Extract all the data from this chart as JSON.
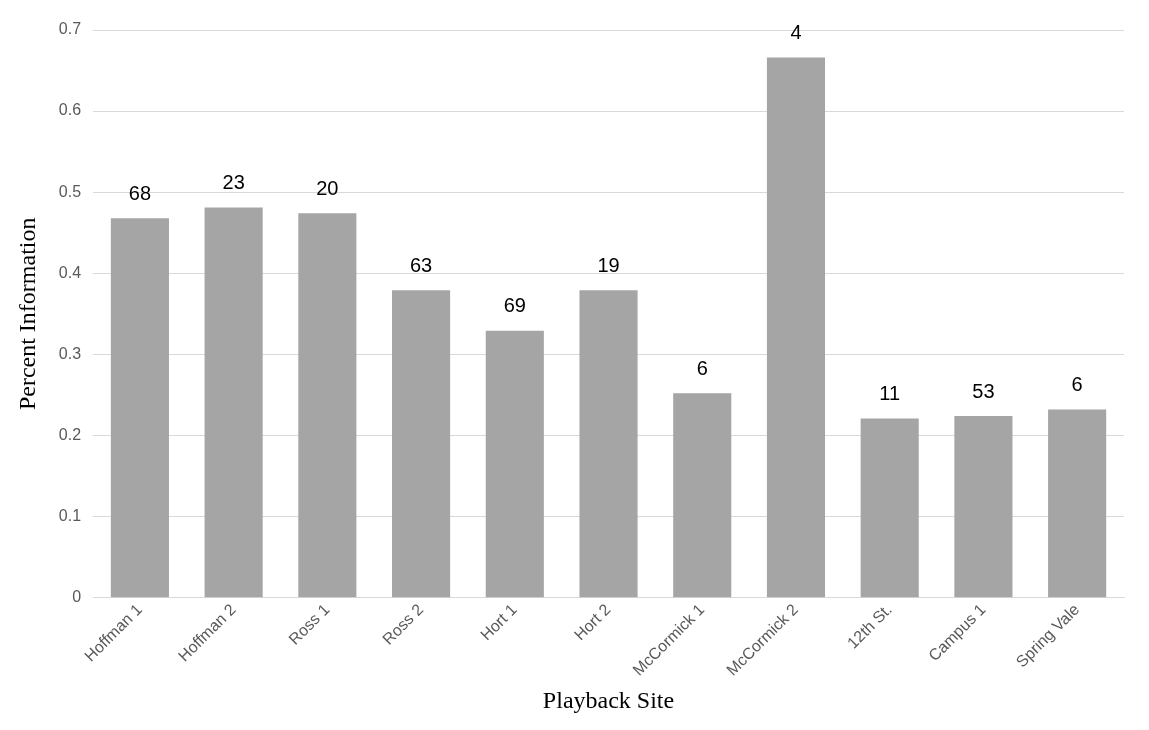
{
  "chart_data": {
    "type": "bar",
    "xlabel": "Playback Site",
    "ylabel": "Percent Information",
    "categories": [
      "Hoffman 1",
      "Hoffman 2",
      "Ross 1",
      "Ross 2",
      "Hort 1",
      "Hort 2",
      "McCormick 1",
      "McCormick 2",
      "12th St.",
      "Campus 1",
      "Spring Vale"
    ],
    "values": [
      0.468,
      0.481,
      0.474,
      0.379,
      0.329,
      0.379,
      0.252,
      0.666,
      0.221,
      0.224,
      0.232
    ],
    "annotations": [
      {
        "text": "68",
        "x": "Hoffman 1",
        "y": 0.468
      },
      {
        "text": "23",
        "x": "Hoffman 2",
        "y": 0.481
      },
      {
        "text": "20",
        "x": "Ross 1",
        "y": 0.474
      },
      {
        "text": "63",
        "x": "Ross 2",
        "y": 0.379
      },
      {
        "text": "69",
        "x": "Hort 1",
        "y": 0.329
      },
      {
        "text": "19",
        "x": "Hort 2",
        "y": 0.379
      },
      {
        "text": "6",
        "x": "McCormick 1",
        "y": 0.252
      },
      {
        "text": "4",
        "x": "McCormick 2",
        "y": 0.666
      },
      {
        "text": "11",
        "x": "12th St.",
        "y": 0.221
      },
      {
        "text": "53",
        "x": "Campus 1",
        "y": 0.224
      },
      {
        "text": "6",
        "x": "Spring Vale",
        "y": 0.232
      }
    ],
    "color": "#a5a5a5",
    "ylim": [
      0,
      0.7
    ],
    "yticks": [
      0,
      0.1,
      0.2,
      0.3,
      0.4,
      0.5,
      0.6,
      0.7
    ],
    "grid": "y",
    "legend": false
  }
}
